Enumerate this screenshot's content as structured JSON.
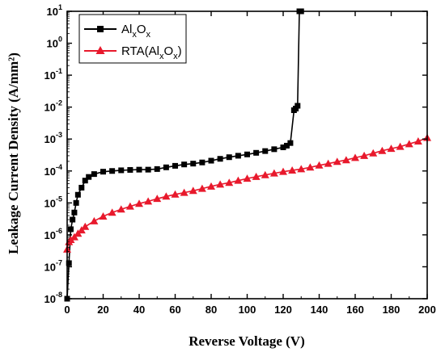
{
  "chart_data": {
    "type": "scatter",
    "xlabel": "Reverse Voltage (V)",
    "ylabel": "Leakage Current Density (A/mm²)",
    "xlim": [
      0,
      200
    ],
    "ylim": [
      1e-08,
      10
    ],
    "yscale": "log",
    "x_ticks": [
      "0",
      "20",
      "40",
      "60",
      "80",
      "100",
      "120",
      "140",
      "160",
      "180",
      "200"
    ],
    "y_ticks": [
      {
        "base": "10",
        "exp": "-8"
      },
      {
        "base": "10",
        "exp": "-7"
      },
      {
        "base": "10",
        "exp": "-6"
      },
      {
        "base": "10",
        "exp": "-5"
      },
      {
        "base": "10",
        "exp": "-4"
      },
      {
        "base": "10",
        "exp": "-3"
      },
      {
        "base": "10",
        "exp": "-2"
      },
      {
        "base": "10",
        "exp": "-1"
      },
      {
        "base": "10",
        "exp": "0"
      },
      {
        "base": "10",
        "exp": "1"
      }
    ],
    "legend_position": "top-left",
    "series": [
      {
        "name": "AlxOx",
        "marker": "square",
        "color": "#000000",
        "x": [
          0,
          1,
          2,
          3,
          4,
          5,
          6,
          8,
          10,
          12,
          15,
          20,
          25,
          30,
          35,
          40,
          45,
          50,
          55,
          60,
          65,
          70,
          75,
          80,
          85,
          90,
          95,
          100,
          105,
          110,
          115,
          120,
          122,
          124,
          126,
          127,
          128,
          129,
          130
        ],
        "y": [
          1e-08,
          1.3e-07,
          1.5e-06,
          3e-06,
          5e-06,
          1e-05,
          1.8e-05,
          3e-05,
          5e-05,
          6.5e-05,
          8e-05,
          9.5e-05,
          0.0001,
          0.000105,
          0.000108,
          0.00011,
          0.00011,
          0.000115,
          0.00013,
          0.000145,
          0.00016,
          0.00017,
          0.000185,
          0.00021,
          0.00024,
          0.00027,
          0.0003,
          0.00033,
          0.00037,
          0.00042,
          0.00048,
          0.00055,
          0.00062,
          0.00075,
          0.008,
          0.009,
          0.011,
          10,
          10
        ]
      },
      {
        "name": "RTA(AlxOx)",
        "marker": "triangle",
        "color": "#e8192c",
        "x": [
          0,
          1,
          2,
          4,
          6,
          8,
          10,
          15,
          20,
          25,
          30,
          35,
          40,
          45,
          50,
          55,
          60,
          65,
          70,
          75,
          80,
          85,
          90,
          95,
          100,
          105,
          110,
          115,
          120,
          125,
          130,
          135,
          140,
          145,
          150,
          155,
          160,
          165,
          170,
          175,
          180,
          185,
          190,
          195,
          200
        ],
        "y": [
          3.5e-07,
          6e-07,
          7e-07,
          8.5e-07,
          1.1e-06,
          1.4e-06,
          1.8e-06,
          2.7e-06,
          3.8e-06,
          5e-06,
          6.3e-06,
          7.8e-06,
          9.5e-06,
          1.12e-05,
          1.35e-05,
          1.6e-05,
          1.85e-05,
          2.1e-05,
          2.4e-05,
          2.8e-05,
          3.3e-05,
          3.8e-05,
          4.3e-05,
          5e-05,
          5.8e-05,
          6.6e-05,
          7.5e-05,
          8.5e-05,
          9.5e-05,
          0.000105,
          0.000115,
          0.00013,
          0.00015,
          0.00017,
          0.000195,
          0.00022,
          0.00026,
          0.0003,
          0.00036,
          0.00043,
          0.0005,
          0.00058,
          0.0007,
          0.00085,
          0.0011
        ]
      }
    ],
    "legend": [
      {
        "label_main": "Al",
        "sub1": "x",
        "mid": "O",
        "sub2": "x",
        "prefix": "",
        "suffix": ""
      },
      {
        "label_main": "Al",
        "sub1": "x",
        "mid": "O",
        "sub2": "x",
        "prefix": "RTA(",
        "suffix": ")"
      }
    ]
  }
}
